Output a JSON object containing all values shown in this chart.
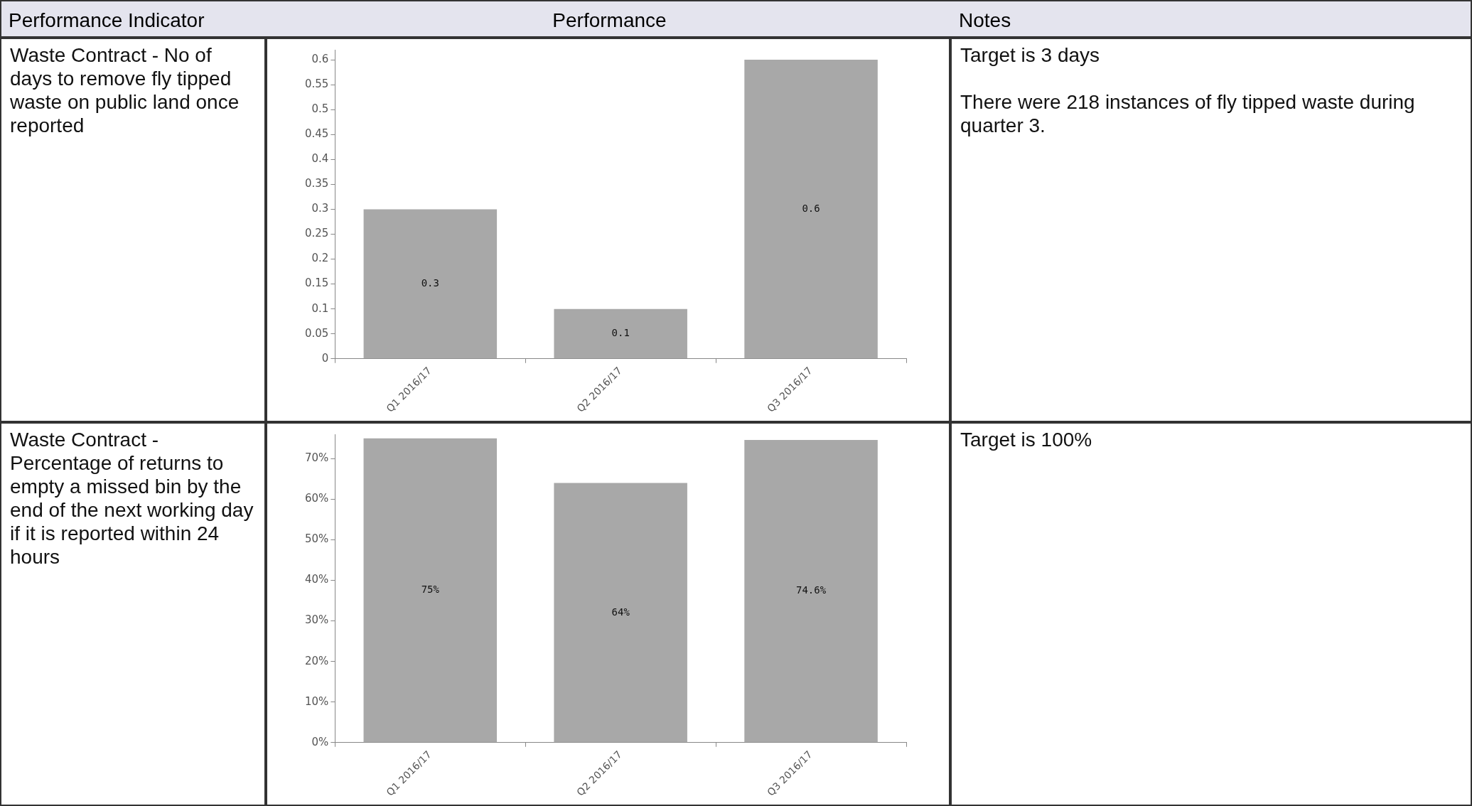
{
  "chart_data": [
    {
      "type": "other",
      "annotations": [
        "Performance Indicator",
        "Performance",
        "Notes"
      ]
    },
    {
      "type": "other",
      "annotations": [
        "Waste Contract - No of days to remove fly tipped waste on public land once reported"
      ]
    },
    {
      "type": "bar",
      "categories": [
        "Q1 2016/17",
        "Q2 2016/17",
        "Q3 2016/17"
      ],
      "values": [
        0.3,
        0.1,
        0.6
      ],
      "color": "#a8a8a8",
      "ylim": [
        0,
        0.62
      ],
      "yticks": [
        0,
        0.05,
        0.1,
        0.15,
        0.2,
        0.25,
        0.3,
        0.35,
        0.4,
        0.45,
        0.5,
        0.55,
        0.6
      ],
      "data_labels": true
    },
    {
      "type": "other",
      "annotations": [
        "Target is 3 days",
        "There were 218 instances of fly tipped waste during quarter 3."
      ]
    },
    {
      "type": "other",
      "annotations": [
        "Waste Contract - Percentage of returns to empty a missed bin by the end of the next working day if it is reported within 24 hours"
      ]
    },
    {
      "type": "bar",
      "categories": [
        "Q1 2016/17",
        "Q2 2016/17",
        "Q3 2016/17"
      ],
      "values": [
        75,
        64,
        74.6
      ],
      "value_labels": [
        "75%",
        "64%",
        "74.6%"
      ],
      "color": "#a8a8a8",
      "ylim": [
        0,
        76
      ],
      "yticks": [
        {
          "value": 0,
          "label": "0%"
        },
        {
          "value": 10,
          "label": "10%"
        },
        {
          "value": 20,
          "label": "20%"
        },
        {
          "value": 30,
          "label": "30%"
        },
        {
          "value": 40,
          "label": "40%"
        },
        {
          "value": 50,
          "label": "50%"
        },
        {
          "value": 60,
          "label": "60%"
        },
        {
          "value": 70,
          "label": "70%"
        }
      ]
    },
    {
      "type": "other",
      "annotations": [
        "Target is 100%"
      ]
    }
  ]
}
